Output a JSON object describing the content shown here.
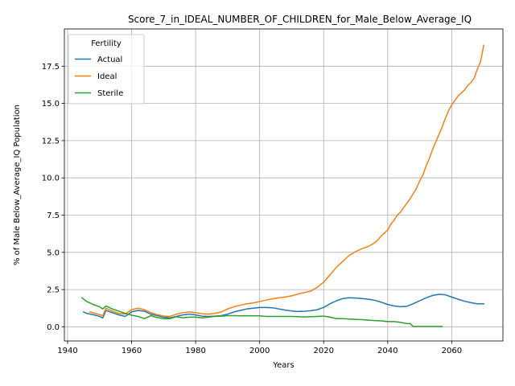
{
  "chart_data": {
    "type": "line",
    "title": "Score_7_in_IDEAL_NUMBER_OF_CHILDREN_for_Male_Below_Average_IQ",
    "xlabel": "Years",
    "ylabel": "% of Male Below_Average_IQ Population",
    "xlim": [
      1939,
      2076
    ],
    "ylim": [
      -0.95,
      20.0
    ],
    "x_ticks": [
      1940,
      1960,
      1980,
      2000,
      2020,
      2040,
      2060
    ],
    "y_ticks": [
      0.0,
      2.5,
      5.0,
      7.5,
      10.0,
      12.5,
      15.0,
      17.5
    ],
    "x_tick_labels": [
      "1940",
      "1960",
      "1980",
      "2000",
      "2020",
      "2040",
      "2060"
    ],
    "y_tick_labels": [
      "0.0",
      "2.5",
      "5.0",
      "7.5",
      "10.0",
      "12.5",
      "15.0",
      "17.5"
    ],
    "grid": true,
    "legend": {
      "title": "Fertility",
      "placement": "upper-left"
    },
    "series": [
      {
        "name": "Actual",
        "color": "#1f77b4",
        "points": [
          [
            1945,
            1.0
          ],
          [
            1946,
            0.9
          ],
          [
            1948,
            0.82
          ],
          [
            1950,
            0.7
          ],
          [
            1951,
            0.6
          ],
          [
            1952,
            1.1
          ],
          [
            1954,
            0.95
          ],
          [
            1956,
            0.8
          ],
          [
            1958,
            0.7
          ],
          [
            1960,
            1.0
          ],
          [
            1962,
            1.1
          ],
          [
            1964,
            1.05
          ],
          [
            1966,
            0.85
          ],
          [
            1968,
            0.75
          ],
          [
            1970,
            0.65
          ],
          [
            1972,
            0.6
          ],
          [
            1974,
            0.7
          ],
          [
            1976,
            0.8
          ],
          [
            1978,
            0.85
          ],
          [
            1980,
            0.8
          ],
          [
            1982,
            0.72
          ],
          [
            1984,
            0.7
          ],
          [
            1986,
            0.72
          ],
          [
            1988,
            0.75
          ],
          [
            1990,
            0.85
          ],
          [
            1992,
            1.0
          ],
          [
            1994,
            1.1
          ],
          [
            1996,
            1.2
          ],
          [
            1998,
            1.25
          ],
          [
            2000,
            1.3
          ],
          [
            2002,
            1.3
          ],
          [
            2004,
            1.28
          ],
          [
            2006,
            1.2
          ],
          [
            2008,
            1.12
          ],
          [
            2010,
            1.06
          ],
          [
            2012,
            1.03
          ],
          [
            2014,
            1.05
          ],
          [
            2016,
            1.08
          ],
          [
            2018,
            1.15
          ],
          [
            2020,
            1.3
          ],
          [
            2022,
            1.55
          ],
          [
            2024,
            1.75
          ],
          [
            2026,
            1.9
          ],
          [
            2028,
            1.95
          ],
          [
            2030,
            1.93
          ],
          [
            2032,
            1.9
          ],
          [
            2034,
            1.85
          ],
          [
            2036,
            1.78
          ],
          [
            2038,
            1.65
          ],
          [
            2040,
            1.5
          ],
          [
            2042,
            1.4
          ],
          [
            2044,
            1.35
          ],
          [
            2046,
            1.38
          ],
          [
            2048,
            1.55
          ],
          [
            2050,
            1.75
          ],
          [
            2052,
            1.95
          ],
          [
            2054,
            2.1
          ],
          [
            2056,
            2.18
          ],
          [
            2058,
            2.15
          ],
          [
            2060,
            2.0
          ],
          [
            2062,
            1.85
          ],
          [
            2064,
            1.72
          ],
          [
            2066,
            1.62
          ],
          [
            2068,
            1.55
          ],
          [
            2070,
            1.55
          ]
        ]
      },
      {
        "name": "Ideal",
        "color": "#ff7f0e",
        "points": [
          [
            1947,
            1.0
          ],
          [
            1948,
            0.95
          ],
          [
            1950,
            0.82
          ],
          [
            1951,
            0.75
          ],
          [
            1952,
            1.25
          ],
          [
            1954,
            1.05
          ],
          [
            1956,
            0.9
          ],
          [
            1958,
            0.85
          ],
          [
            1960,
            1.15
          ],
          [
            1962,
            1.25
          ],
          [
            1964,
            1.15
          ],
          [
            1966,
            0.95
          ],
          [
            1968,
            0.82
          ],
          [
            1970,
            0.72
          ],
          [
            1972,
            0.7
          ],
          [
            1974,
            0.85
          ],
          [
            1976,
            0.95
          ],
          [
            1978,
            1.0
          ],
          [
            1980,
            0.95
          ],
          [
            1982,
            0.88
          ],
          [
            1984,
            0.85
          ],
          [
            1986,
            0.9
          ],
          [
            1988,
            1.0
          ],
          [
            1990,
            1.2
          ],
          [
            1992,
            1.35
          ],
          [
            1994,
            1.45
          ],
          [
            1996,
            1.55
          ],
          [
            1998,
            1.6
          ],
          [
            2000,
            1.7
          ],
          [
            2002,
            1.8
          ],
          [
            2004,
            1.88
          ],
          [
            2006,
            1.95
          ],
          [
            2008,
            2.0
          ],
          [
            2010,
            2.08
          ],
          [
            2012,
            2.2
          ],
          [
            2014,
            2.3
          ],
          [
            2016,
            2.4
          ],
          [
            2018,
            2.65
          ],
          [
            2020,
            3.0
          ],
          [
            2022,
            3.5
          ],
          [
            2024,
            4.0
          ],
          [
            2026,
            4.4
          ],
          [
            2028,
            4.8
          ],
          [
            2030,
            5.05
          ],
          [
            2032,
            5.25
          ],
          [
            2034,
            5.4
          ],
          [
            2036,
            5.65
          ],
          [
            2037,
            5.85
          ],
          [
            2038,
            6.1
          ],
          [
            2039,
            6.3
          ],
          [
            2040,
            6.5
          ],
          [
            2041,
            6.9
          ],
          [
            2042,
            7.15
          ],
          [
            2043,
            7.5
          ],
          [
            2044,
            7.7
          ],
          [
            2045,
            8.0
          ],
          [
            2046,
            8.3
          ],
          [
            2047,
            8.6
          ],
          [
            2048,
            8.95
          ],
          [
            2049,
            9.3
          ],
          [
            2050,
            9.8
          ],
          [
            2051,
            10.2
          ],
          [
            2052,
            10.8
          ],
          [
            2053,
            11.3
          ],
          [
            2054,
            11.9
          ],
          [
            2055,
            12.4
          ],
          [
            2056,
            12.9
          ],
          [
            2057,
            13.4
          ],
          [
            2058,
            14.0
          ],
          [
            2059,
            14.5
          ],
          [
            2060,
            14.9
          ],
          [
            2061,
            15.2
          ],
          [
            2062,
            15.5
          ],
          [
            2063,
            15.7
          ],
          [
            2064,
            15.9
          ],
          [
            2065,
            16.2
          ],
          [
            2066,
            16.4
          ],
          [
            2067,
            16.7
          ],
          [
            2068,
            17.3
          ],
          [
            2069,
            17.8
          ],
          [
            2070,
            18.9
          ]
        ]
      },
      {
        "name": "Sterile",
        "color": "#2ca02c",
        "points": [
          [
            1944.5,
            1.95
          ],
          [
            1946,
            1.7
          ],
          [
            1948,
            1.5
          ],
          [
            1950,
            1.35
          ],
          [
            1951,
            1.2
          ],
          [
            1952,
            1.4
          ],
          [
            1954,
            1.2
          ],
          [
            1956,
            1.05
          ],
          [
            1958,
            0.9
          ],
          [
            1960,
            0.78
          ],
          [
            1962,
            0.7
          ],
          [
            1964,
            0.55
          ],
          [
            1966,
            0.75
          ],
          [
            1968,
            0.62
          ],
          [
            1970,
            0.55
          ],
          [
            1972,
            0.55
          ],
          [
            1974,
            0.68
          ],
          [
            1976,
            0.6
          ],
          [
            1978,
            0.65
          ],
          [
            1980,
            0.65
          ],
          [
            1982,
            0.6
          ],
          [
            1984,
            0.65
          ],
          [
            1986,
            0.7
          ],
          [
            1988,
            0.72
          ],
          [
            1990,
            0.75
          ],
          [
            1992,
            0.75
          ],
          [
            1994,
            0.74
          ],
          [
            1996,
            0.74
          ],
          [
            1998,
            0.74
          ],
          [
            2000,
            0.74
          ],
          [
            2002,
            0.7
          ],
          [
            2004,
            0.7
          ],
          [
            2006,
            0.7
          ],
          [
            2008,
            0.7
          ],
          [
            2010,
            0.7
          ],
          [
            2012,
            0.68
          ],
          [
            2014,
            0.66
          ],
          [
            2016,
            0.68
          ],
          [
            2018,
            0.7
          ],
          [
            2020,
            0.72
          ],
          [
            2022,
            0.65
          ],
          [
            2024,
            0.55
          ],
          [
            2026,
            0.55
          ],
          [
            2028,
            0.52
          ],
          [
            2030,
            0.5
          ],
          [
            2032,
            0.48
          ],
          [
            2034,
            0.45
          ],
          [
            2036,
            0.42
          ],
          [
            2038,
            0.4
          ],
          [
            2040,
            0.35
          ],
          [
            2042,
            0.35
          ],
          [
            2044,
            0.3
          ],
          [
            2045,
            0.25
          ],
          [
            2046,
            0.22
          ],
          [
            2047,
            0.22
          ],
          [
            2048,
            0.02
          ],
          [
            2050,
            0.02
          ],
          [
            2052,
            0.02
          ],
          [
            2054,
            0.02
          ],
          [
            2056,
            0.02
          ],
          [
            2057,
            0.02
          ]
        ]
      }
    ]
  }
}
